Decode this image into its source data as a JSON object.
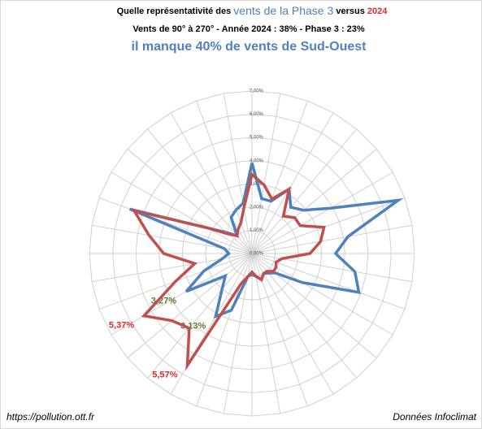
{
  "chart_data": {
    "type": "radar",
    "title_parts": [
      "Quelle représentativité des ",
      "vents de la Phase 3",
      "   versus   ",
      "2024"
    ],
    "subtitle": "Vents de 90° à 270°  -  Année 2024 : 38% -    Phase 3 : 23%",
    "headline": "il manque 40% de vents de Sud-Ouest",
    "source_left": "https://pollution.ott.fr",
    "source_right": "Données Infoclimat",
    "categories": [
      null,
      null,
      null,
      null,
      null,
      null,
      null,
      null,
      null,
      null,
      null,
      null,
      null,
      null,
      null,
      null,
      null,
      null,
      null,
      null,
      null,
      null,
      null,
      null,
      null,
      null,
      null,
      null,
      null,
      null,
      null,
      null,
      null,
      null,
      null,
      null
    ],
    "ylim": [
      0,
      7
    ],
    "yticks": [
      {
        "value": 0,
        "label": "0,00%"
      },
      {
        "value": 1,
        "label": "1,00%"
      },
      {
        "value": 2,
        "label": "2,00%"
      },
      {
        "value": 3,
        "label": "3,00%"
      },
      {
        "value": 4,
        "label": "4,00%"
      },
      {
        "value": 5,
        "label": "5,00%"
      },
      {
        "value": 6,
        "label": "6,00%"
      },
      {
        "value": 7,
        "label": "7,00%"
      }
    ],
    "grid": true,
    "series": [
      {
        "name": "Phase 3",
        "color": "#4f81bd",
        "label_color": "#5f7a30",
        "values": [
          3.9,
          2.4,
          2.4,
          3.2,
          2.6,
          2.9,
          3.9,
          6.7,
          4.2,
          3.6,
          4.5,
          4.9,
          2.5,
          1.3,
          1.1,
          1.0,
          1.2,
          1.0,
          0.9,
          1.0,
          2.6,
          3.13,
          2.0,
          1.5,
          3.27,
          2.2,
          1.3,
          1.0,
          1.2,
          5.6,
          2.2,
          1.4,
          1.0,
          1.8,
          2.0,
          2.2
        ],
        "value_labels": [
          null,
          null,
          null,
          null,
          null,
          null,
          null,
          null,
          null,
          null,
          null,
          null,
          null,
          null,
          null,
          null,
          null,
          null,
          null,
          null,
          null,
          "3,13%",
          null,
          null,
          "3,27%",
          null,
          null,
          null,
          null,
          null,
          null,
          null,
          null,
          null,
          null,
          null
        ]
      },
      {
        "name": "2024",
        "color": "#c0504d",
        "label_color": "#e3262b",
        "values": [
          3.4,
          3.0,
          2.5,
          3.2,
          2.1,
          2.4,
          2.4,
          3.3,
          3.0,
          2.5,
          1.3,
          1.1,
          1.2,
          1.2,
          1.0,
          1.0,
          1.2,
          1.0,
          0.8,
          1.0,
          1.4,
          5.57,
          4.2,
          4.5,
          5.37,
          3.5,
          2.5,
          3.8,
          4.5,
          5.4,
          2.2,
          1.3,
          1.0,
          1.2,
          1.4,
          2.0
        ],
        "value_labels": [
          null,
          null,
          null,
          null,
          null,
          null,
          null,
          null,
          null,
          null,
          null,
          null,
          null,
          null,
          null,
          null,
          null,
          null,
          null,
          null,
          null,
          "5,57%",
          null,
          null,
          "5,37%",
          null,
          null,
          null,
          null,
          null,
          null,
          null,
          null,
          null,
          null,
          null
        ]
      }
    ]
  }
}
